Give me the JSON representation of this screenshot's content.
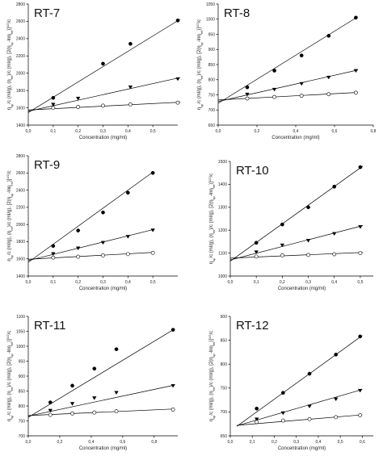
{
  "chart_data": [
    {
      "type": "scatter",
      "title": "RT-7",
      "xlabel": "Concentration (mg/ml)",
      "ylabel_parts": [
        "η",
        "sp",
        "/c (ml/g), (",
        "η",
        "rel",
        ")/c (ml/g), [2(",
        "η",
        "sp",
        "-ln",
        "η",
        "rel",
        ")]",
        "1/2",
        "/c"
      ],
      "xlim": [
        0.0,
        0.6
      ],
      "ylim": [
        1400,
        2800
      ],
      "xticks": [
        "0,0",
        "0,1",
        "0,2",
        "0,3",
        "0,4",
        "0,5"
      ],
      "yticks": [
        "1400",
        "1600",
        "1800",
        "2000",
        "2200",
        "2400",
        "2600",
        "2800"
      ],
      "series": [
        {
          "marker": "filled-circle",
          "points": [
            [
              0.1,
              1715
            ],
            [
              0.3,
              2110
            ],
            [
              0.41,
              2340
            ],
            [
              0.6,
              2610
            ]
          ]
        },
        {
          "marker": "filled-triangle",
          "points": [
            [
              0.1,
              1640
            ],
            [
              0.2,
              1710
            ],
            [
              0.41,
              1840
            ],
            [
              0.6,
              1935
            ]
          ]
        },
        {
          "marker": "open-circle",
          "points": [
            [
              0.1,
              1600
            ],
            [
              0.2,
              1610
            ],
            [
              0.3,
              1625
            ],
            [
              0.41,
              1640
            ],
            [
              0.6,
              1660
            ]
          ]
        }
      ],
      "fits": [
        {
          "x": [
            0.0,
            0.61
          ],
          "y": [
            1545,
            2625
          ]
        },
        {
          "x": [
            0.0,
            0.61
          ],
          "y": [
            1560,
            1950
          ]
        },
        {
          "x": [
            0.0,
            0.61
          ],
          "y": [
            1575,
            1665
          ]
        }
      ]
    },
    {
      "type": "scatter",
      "title": "RT-8",
      "xlabel": "Concentration (mg/ml)",
      "ylabel_parts": [
        "η",
        "sp",
        "/c (ml/g), (",
        "η",
        "rel",
        ")/c (ml/g), [2(",
        "η",
        "sp",
        "-ln",
        "η",
        "rel",
        ")]",
        "1/2",
        "/c"
      ],
      "xlim": [
        0.0,
        0.8
      ],
      "ylim": [
        650,
        1050
      ],
      "xticks": [
        "0,0",
        "0,2",
        "0,4",
        "0,6",
        "0,8"
      ],
      "yticks": [
        "650",
        "700",
        "750",
        "800",
        "850",
        "900",
        "950",
        "1000",
        "1050"
      ],
      "series": [
        {
          "marker": "filled-circle",
          "points": [
            [
              0.15,
              775
            ],
            [
              0.29,
              830
            ],
            [
              0.43,
              880
            ],
            [
              0.57,
              945
            ],
            [
              0.71,
              1005
            ]
          ]
        },
        {
          "marker": "filled-triangle",
          "points": [
            [
              0.15,
              752
            ],
            [
              0.29,
              768
            ],
            [
              0.43,
              787
            ],
            [
              0.57,
              808
            ],
            [
              0.71,
              830
            ]
          ]
        },
        {
          "marker": "open-circle",
          "points": [
            [
              0.15,
              738
            ],
            [
              0.29,
              743
            ],
            [
              0.43,
              747
            ],
            [
              0.57,
              752
            ],
            [
              0.71,
              757
            ]
          ]
        }
      ],
      "fits": [
        {
          "x": [
            0.0,
            0.72
          ],
          "y": [
            722,
            1008
          ]
        },
        {
          "x": [
            0.0,
            0.72
          ],
          "y": [
            728,
            832
          ]
        },
        {
          "x": [
            0.0,
            0.72
          ],
          "y": [
            733,
            758
          ]
        }
      ]
    },
    {
      "type": "scatter",
      "title": "RT-9",
      "xlabel": "Concentration (mg/ml)",
      "ylabel_parts": [
        "η",
        "sp",
        "/c (ml/g), (",
        "η",
        "rel",
        ")/c (ml/g), [2(",
        "η",
        "sp",
        "-ln",
        "η",
        "rel",
        ")]",
        "1/2",
        "/c"
      ],
      "xlim": [
        0.0,
        0.6
      ],
      "ylim": [
        1400,
        2800
      ],
      "xticks": [
        "0,0",
        "0,1",
        "0,2",
        "0,3",
        "0,4",
        "0,5"
      ],
      "yticks": [
        "1400",
        "1600",
        "1800",
        "2000",
        "2200",
        "2400",
        "2600",
        "2800"
      ],
      "series": [
        {
          "marker": "filled-circle",
          "points": [
            [
              0.1,
              1750
            ],
            [
              0.2,
              1930
            ],
            [
              0.3,
              2140
            ],
            [
              0.4,
              2370
            ],
            [
              0.5,
              2600
            ]
          ]
        },
        {
          "marker": "filled-triangle",
          "points": [
            [
              0.1,
              1660
            ],
            [
              0.2,
              1725
            ],
            [
              0.3,
              1790
            ],
            [
              0.4,
              1860
            ],
            [
              0.5,
              1935
            ]
          ]
        },
        {
          "marker": "open-circle",
          "points": [
            [
              0.1,
              1615
            ],
            [
              0.2,
              1625
            ],
            [
              0.3,
              1640
            ],
            [
              0.4,
              1655
            ],
            [
              0.5,
              1670
            ]
          ]
        }
      ],
      "fits": [
        {
          "x": [
            0.0,
            0.5
          ],
          "y": [
            1560,
            2610
          ]
        },
        {
          "x": [
            0.0,
            0.5
          ],
          "y": [
            1580,
            1940
          ]
        },
        {
          "x": [
            0.0,
            0.5
          ],
          "y": [
            1595,
            1675
          ]
        }
      ]
    },
    {
      "type": "scatter",
      "title": "RT-10",
      "xlabel": "Concentration (mg/ml)",
      "ylabel_parts": [
        "η",
        "sp",
        "/c (ml/g), (",
        "η",
        "rel",
        ")/c (ml/g), [2(",
        "η",
        "sp",
        "-ln",
        "η",
        "rel",
        ")]",
        "1/2",
        "/c"
      ],
      "xlim": [
        0.0,
        0.55
      ],
      "ylim": [
        1000,
        1500
      ],
      "xticks": [
        "0,0",
        "0,1",
        "0,2",
        "0,3",
        "0,4",
        "0,5"
      ],
      "yticks": [
        "1000",
        "1100",
        "1200",
        "1300",
        "1400",
        "1500"
      ],
      "series": [
        {
          "marker": "filled-circle",
          "points": [
            [
              0.1,
              1145
            ],
            [
              0.2,
              1225
            ],
            [
              0.3,
              1300
            ],
            [
              0.4,
              1390
            ],
            [
              0.5,
              1475
            ]
          ]
        },
        {
          "marker": "filled-triangle",
          "points": [
            [
              0.1,
              1105
            ],
            [
              0.2,
              1135
            ],
            [
              0.3,
              1155
            ],
            [
              0.4,
              1185
            ],
            [
              0.5,
              1215
            ]
          ]
        },
        {
          "marker": "open-circle",
          "points": [
            [
              0.1,
              1085
            ],
            [
              0.2,
              1090
            ],
            [
              0.3,
              1092
            ],
            [
              0.4,
              1095
            ],
            [
              0.5,
              1100
            ]
          ]
        }
      ],
      "fits": [
        {
          "x": [
            0.0,
            0.51
          ],
          "y": [
            1065,
            1480
          ]
        },
        {
          "x": [
            0.0,
            0.51
          ],
          "y": [
            1070,
            1220
          ]
        },
        {
          "x": [
            0.0,
            0.51
          ],
          "y": [
            1078,
            1103
          ]
        }
      ]
    },
    {
      "type": "scatter",
      "title": "RT-11",
      "xlabel": "Concentration (mg/ml)",
      "ylabel_parts": [
        "η",
        "sp",
        "/c (ml/g), (",
        "η",
        "rel",
        ")/c (ml/g), [2(",
        "η",
        "sp",
        "-ln",
        "η",
        "rel",
        ")]",
        "1/2",
        "/c"
      ],
      "xlim": [
        0.0,
        0.95
      ],
      "ylim": [
        700,
        1100
      ],
      "xticks": [
        "0,0",
        "0,2",
        "0,4",
        "0,6",
        "0,8"
      ],
      "yticks": [
        "700",
        "750",
        "800",
        "850",
        "900",
        "950",
        "1000",
        "1050",
        "1100"
      ],
      "series": [
        {
          "marker": "filled-circle",
          "points": [
            [
              0.14,
              812
            ],
            [
              0.28,
              868
            ],
            [
              0.42,
              925
            ],
            [
              0.56,
              990
            ],
            [
              0.92,
              1055
            ]
          ]
        },
        {
          "marker": "filled-triangle",
          "points": [
            [
              0.14,
              785
            ],
            [
              0.28,
              808
            ],
            [
              0.42,
              827
            ],
            [
              0.56,
              845
            ],
            [
              0.92,
              868
            ]
          ]
        },
        {
          "marker": "open-circle",
          "points": [
            [
              0.14,
              770
            ],
            [
              0.28,
              775
            ],
            [
              0.42,
              778
            ],
            [
              0.56,
              782
            ],
            [
              0.92,
              788
            ]
          ]
        }
      ],
      "fits": [
        {
          "x": [
            0.0,
            0.93
          ],
          "y": [
            762,
            1058
          ]
        },
        {
          "x": [
            0.0,
            0.93
          ],
          "y": [
            766,
            870
          ]
        },
        {
          "x": [
            0.0,
            0.93
          ],
          "y": [
            768,
            790
          ]
        }
      ]
    },
    {
      "type": "scatter",
      "title": "RT-12",
      "xlabel": "Concentration (mg/ml)",
      "ylabel_parts": [
        "η",
        "sp",
        "/c (ml/g), (",
        "η",
        "rel",
        ")/c (ml/g), [2(",
        "η",
        "sp",
        "-ln",
        "η",
        "rel",
        ")]",
        "1/2",
        "/c"
      ],
      "xlim": [
        0.0,
        0.65
      ],
      "ylim": [
        650,
        900
      ],
      "xticks": [
        "0,0",
        "0,1",
        "0,2",
        "0,3",
        "0,4",
        "0,5",
        "0,6"
      ],
      "yticks": [
        "650",
        "700",
        "750",
        "800",
        "850",
        "900"
      ],
      "series": [
        {
          "marker": "filled-circle",
          "points": [
            [
              0.12,
              707
            ],
            [
              0.24,
              740
            ],
            [
              0.36,
              780
            ],
            [
              0.48,
              820
            ],
            [
              0.59,
              858
            ]
          ]
        },
        {
          "marker": "filled-triangle",
          "points": [
            [
              0.12,
              685
            ],
            [
              0.24,
              698
            ],
            [
              0.36,
              712
            ],
            [
              0.48,
              727
            ],
            [
              0.59,
              745
            ]
          ]
        },
        {
          "marker": "open-circle",
          "points": [
            [
              0.12,
              679
            ],
            [
              0.24,
              682
            ],
            [
              0.36,
              685
            ],
            [
              0.48,
              689
            ],
            [
              0.59,
              693
            ]
          ]
        }
      ],
      "fits": [
        {
          "x": [
            0.03,
            0.6
          ],
          "y": [
            670,
            860
          ]
        },
        {
          "x": [
            0.03,
            0.6
          ],
          "y": [
            671,
            747
          ]
        },
        {
          "x": [
            0.03,
            0.6
          ],
          "y": [
            672,
            694
          ]
        }
      ]
    }
  ]
}
